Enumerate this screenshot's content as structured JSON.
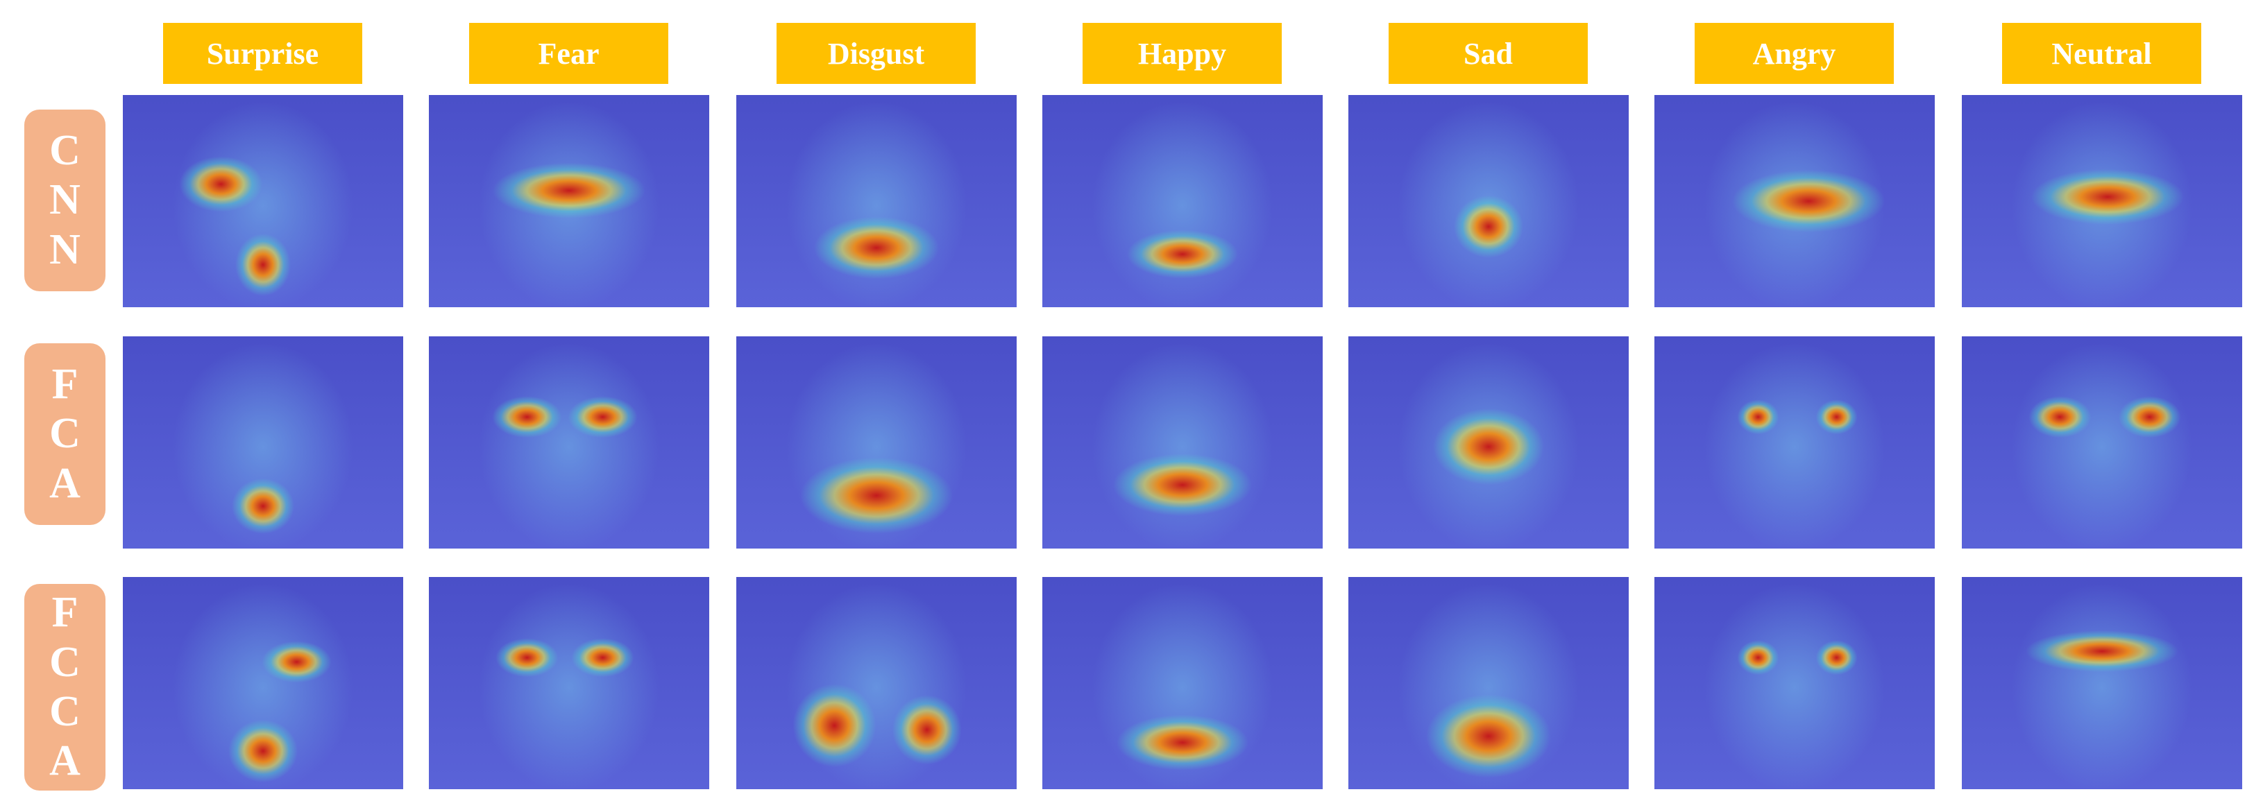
{
  "columns": [
    "Surprise",
    "Fear",
    "Disgust",
    "Happy",
    "Sad",
    "Angry",
    "Neutral"
  ],
  "rows": [
    "CNN",
    "FCA",
    "FCCA"
  ]
}
